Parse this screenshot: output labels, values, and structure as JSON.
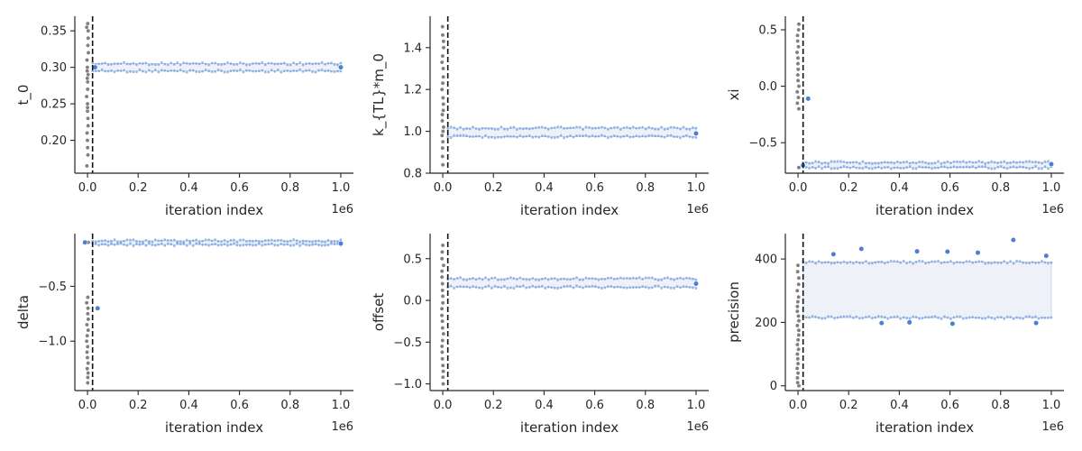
{
  "colors": {
    "burnin_points": "#7f7f7f",
    "sample_points": "#4a7fd4",
    "sample_band": "#eef2f8",
    "sample_band_edge": "#c7d7ef",
    "burnin_line": "#111111",
    "axis": "#262626"
  },
  "chart_data": [
    {
      "type": "scatter",
      "xlabel": "iteration index",
      "ylabel": "t_0",
      "x_offset_label": "1e6",
      "xlim": [
        -0.05,
        1.05
      ],
      "ylim": [
        0.155,
        0.37
      ],
      "xticks": [
        0,
        0.2,
        0.4,
        0.6,
        0.8,
        1.0
      ],
      "xtick_labels": [
        "0.0",
        "0.2",
        "0.4",
        "0.6",
        "0.8",
        "1.0"
      ],
      "yticks": [
        0.2,
        0.25,
        0.3,
        0.35
      ],
      "ytick_labels": [
        "0.20",
        "0.25",
        "0.30",
        "0.35"
      ],
      "burnin_x": 0.02,
      "burnin_values": [
        0.165,
        0.18,
        0.19,
        0.2,
        0.21,
        0.22,
        0.23,
        0.24,
        0.245,
        0.25,
        0.26,
        0.27,
        0.28,
        0.285,
        0.29,
        0.295,
        0.3,
        0.31,
        0.32,
        0.33,
        0.34,
        0.35,
        0.355,
        0.36
      ],
      "band": {
        "x": [
          0.02,
          1.0
        ],
        "low": 0.295,
        "high": 0.305
      },
      "outliers": [
        {
          "x": 0.03,
          "y": 0.3
        },
        {
          "x": 1.0,
          "y": 0.3
        }
      ]
    },
    {
      "type": "scatter",
      "xlabel": "iteration index",
      "ylabel": "k_{TL}*m_0",
      "x_offset_label": "1e6",
      "xlim": [
        -0.05,
        1.05
      ],
      "ylim": [
        0.8,
        1.55
      ],
      "xticks": [
        0,
        0.2,
        0.4,
        0.6,
        0.8,
        1.0
      ],
      "xtick_labels": [
        "0.0",
        "0.2",
        "0.4",
        "0.6",
        "0.8",
        "1.0"
      ],
      "yticks": [
        0.8,
        1.0,
        1.2,
        1.4
      ],
      "ytick_labels": [
        "0.8",
        "1.0",
        "1.2",
        "1.4"
      ],
      "burnin_x": 0.02,
      "burnin_values": [
        0.84,
        0.88,
        0.92,
        0.95,
        0.98,
        1.0,
        1.02,
        1.05,
        1.08,
        1.1,
        1.13,
        1.16,
        1.2,
        1.23,
        1.26,
        1.3,
        1.33,
        1.36,
        1.4,
        1.43,
        1.46,
        1.5
      ],
      "band": {
        "x": [
          0.02,
          1.0
        ],
        "low": 0.975,
        "high": 1.015
      },
      "outliers": [
        {
          "x": 1.0,
          "y": 0.99
        }
      ]
    },
    {
      "type": "scatter",
      "xlabel": "iteration index",
      "ylabel": "xi",
      "x_offset_label": "1e6",
      "xlim": [
        -0.05,
        1.05
      ],
      "ylim": [
        -0.77,
        0.62
      ],
      "xticks": [
        0,
        0.2,
        0.4,
        0.6,
        0.8,
        1.0
      ],
      "xtick_labels": [
        "0.0",
        "0.2",
        "0.4",
        "0.6",
        "0.8",
        "1.0"
      ],
      "yticks": [
        -0.5,
        0.0,
        0.5
      ],
      "ytick_labels": [
        "−0.5",
        "0.0",
        "0.5"
      ],
      "burnin_x": 0.02,
      "burnin_values": [
        -0.72,
        -0.2,
        -0.15,
        -0.1,
        -0.05,
        0.0,
        0.05,
        0.1,
        0.15,
        0.2,
        0.25,
        0.3,
        0.35,
        0.4,
        0.45,
        0.5,
        0.55
      ],
      "band": {
        "x": [
          0.02,
          1.0
        ],
        "low": -0.72,
        "high": -0.675
      },
      "outliers": [
        {
          "x": 0.04,
          "y": -0.11
        },
        {
          "x": 0.02,
          "y": -0.7
        },
        {
          "x": 1.0,
          "y": -0.69
        }
      ]
    },
    {
      "type": "scatter",
      "xlabel": "iteration index",
      "ylabel": "delta",
      "x_offset_label": "1e6",
      "xlim": [
        -0.05,
        1.05
      ],
      "ylim": [
        -1.45,
        -0.02
      ],
      "xticks": [
        0,
        0.2,
        0.4,
        0.6,
        0.8,
        1.0
      ],
      "xtick_labels": [
        "0.0",
        "0.2",
        "0.4",
        "0.6",
        "0.8",
        "1.0"
      ],
      "yticks": [
        -1.0,
        -0.5
      ],
      "ytick_labels": [
        "−1.0",
        "−0.5"
      ],
      "burnin_x": 0.02,
      "burnin_values": [
        -1.38,
        -1.33,
        -1.29,
        -1.25,
        -1.2,
        -1.15,
        -1.1,
        -1.05,
        -1.0,
        -0.95,
        -0.9,
        -0.85,
        -0.8,
        -0.75,
        -0.7,
        -0.65,
        -0.6,
        -0.1
      ],
      "band": {
        "x": [
          0.02,
          1.0
        ],
        "low": -0.12,
        "high": -0.085
      },
      "outliers": [
        {
          "x": 0.04,
          "y": -0.7
        },
        {
          "x": -0.01,
          "y": -0.1
        },
        {
          "x": 1.0,
          "y": -0.11
        }
      ]
    },
    {
      "type": "scatter",
      "xlabel": "iteration index",
      "ylabel": "offset",
      "x_offset_label": "1e6",
      "xlim": [
        -0.05,
        1.05
      ],
      "ylim": [
        -1.08,
        0.8
      ],
      "xticks": [
        0,
        0.2,
        0.4,
        0.6,
        0.8,
        1.0
      ],
      "xtick_labels": [
        "0.0",
        "0.2",
        "0.4",
        "0.6",
        "0.8",
        "1.0"
      ],
      "yticks": [
        -1.0,
        -0.5,
        0.0,
        0.5
      ],
      "ytick_labels": [
        "−1.0",
        "−0.5",
        "0.0",
        "0.5"
      ],
      "burnin_x": 0.02,
      "burnin_values": [
        -1.0,
        -0.92,
        -0.85,
        -0.78,
        -0.7,
        -0.62,
        -0.55,
        -0.48,
        -0.4,
        -0.33,
        -0.25,
        -0.18,
        -0.1,
        -0.03,
        0.05,
        0.12,
        0.2,
        0.28,
        0.35,
        0.42,
        0.5,
        0.58,
        0.66
      ],
      "band": {
        "x": [
          0.02,
          1.0
        ],
        "low": 0.16,
        "high": 0.26
      },
      "outliers": [
        {
          "x": 1.0,
          "y": 0.2
        }
      ]
    },
    {
      "type": "scatter",
      "xlabel": "iteration index",
      "ylabel": "precision",
      "x_offset_label": "1e6",
      "xlim": [
        -0.05,
        1.05
      ],
      "ylim": [
        -15,
        480
      ],
      "xticks": [
        0,
        0.2,
        0.4,
        0.6,
        0.8,
        1.0
      ],
      "xtick_labels": [
        "0.0",
        "0.2",
        "0.4",
        "0.6",
        "0.8",
        "1.0"
      ],
      "yticks": [
        0,
        200,
        400
      ],
      "ytick_labels": [
        "0",
        "200",
        "400"
      ],
      "burnin_x": 0.02,
      "burnin_values": [
        0,
        10,
        25,
        40,
        55,
        70,
        85,
        100,
        115,
        130,
        145,
        160,
        175,
        190,
        205,
        220,
        235,
        250,
        265,
        280,
        300,
        320,
        340,
        360,
        380
      ],
      "band": {
        "x": [
          0.02,
          1.0
        ],
        "low": 215,
        "high": 390
      },
      "outliers": [
        {
          "x": 0.14,
          "y": 415
        },
        {
          "x": 0.25,
          "y": 432
        },
        {
          "x": 0.33,
          "y": 198
        },
        {
          "x": 0.44,
          "y": 200
        },
        {
          "x": 0.47,
          "y": 424
        },
        {
          "x": 0.59,
          "y": 423
        },
        {
          "x": 0.61,
          "y": 196
        },
        {
          "x": 0.71,
          "y": 420
        },
        {
          "x": 0.85,
          "y": 460
        },
        {
          "x": 0.94,
          "y": 198
        },
        {
          "x": 0.98,
          "y": 410
        }
      ]
    }
  ]
}
